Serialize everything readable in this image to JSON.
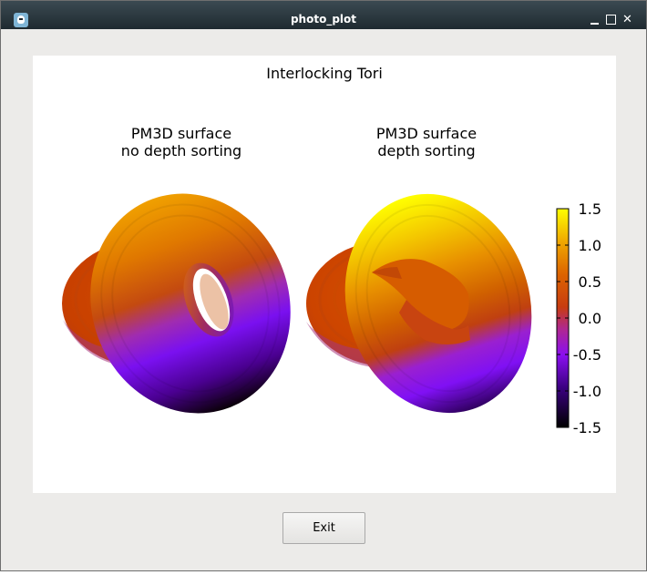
{
  "window": {
    "title": "photo_plot",
    "app_icon": "gnuplot-app-icon"
  },
  "plot": {
    "title": "Interlocking Tori",
    "subplots": [
      {
        "line1": "PM3D surface",
        "line2": "no depth sorting"
      },
      {
        "line1": "PM3D surface",
        "line2": "depth sorting"
      }
    ],
    "colorbar": {
      "ticks": [
        "1.5",
        "1.0",
        "0.5",
        "0.0",
        "-0.5",
        "-1.0",
        "-1.5"
      ],
      "palette": [
        "#000000",
        "#5a00a8",
        "#9a10f0",
        "#c0306a",
        "#d04a00",
        "#e07a00",
        "#f0b000",
        "#ffff00"
      ]
    }
  },
  "buttons": {
    "exit_label": "Exit"
  }
}
